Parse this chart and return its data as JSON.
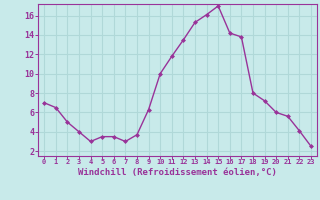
{
  "x": [
    0,
    1,
    2,
    3,
    4,
    5,
    6,
    7,
    8,
    9,
    10,
    11,
    12,
    13,
    14,
    15,
    16,
    17,
    18,
    19,
    20,
    21,
    22,
    23
  ],
  "y": [
    7.0,
    6.5,
    5.0,
    4.0,
    3.0,
    3.5,
    3.5,
    3.0,
    3.7,
    6.3,
    10.0,
    11.8,
    13.5,
    15.3,
    16.1,
    17.0,
    14.2,
    13.8,
    8.0,
    7.2,
    6.0,
    5.6,
    4.1,
    2.5
  ],
  "line_color": "#993399",
  "marker": "D",
  "marker_size": 2,
  "bg_color": "#c8eaea",
  "grid_color": "#b0d8d8",
  "xlabel": "Windchill (Refroidissement éolien,°C)",
  "xlabel_color": "#993399",
  "tick_color": "#993399",
  "spine_color": "#993399",
  "ylim": [
    1.5,
    17.2
  ],
  "xlim": [
    -0.5,
    23.5
  ],
  "yticks": [
    2,
    4,
    6,
    8,
    10,
    12,
    14,
    16
  ],
  "xticks": [
    0,
    1,
    2,
    3,
    4,
    5,
    6,
    7,
    8,
    9,
    10,
    11,
    12,
    13,
    14,
    15,
    16,
    17,
    18,
    19,
    20,
    21,
    22,
    23
  ],
  "xlabel_fontsize": 6.5,
  "tick_fontsize_x": 5.0,
  "tick_fontsize_y": 6.0,
  "linewidth": 1.0
}
